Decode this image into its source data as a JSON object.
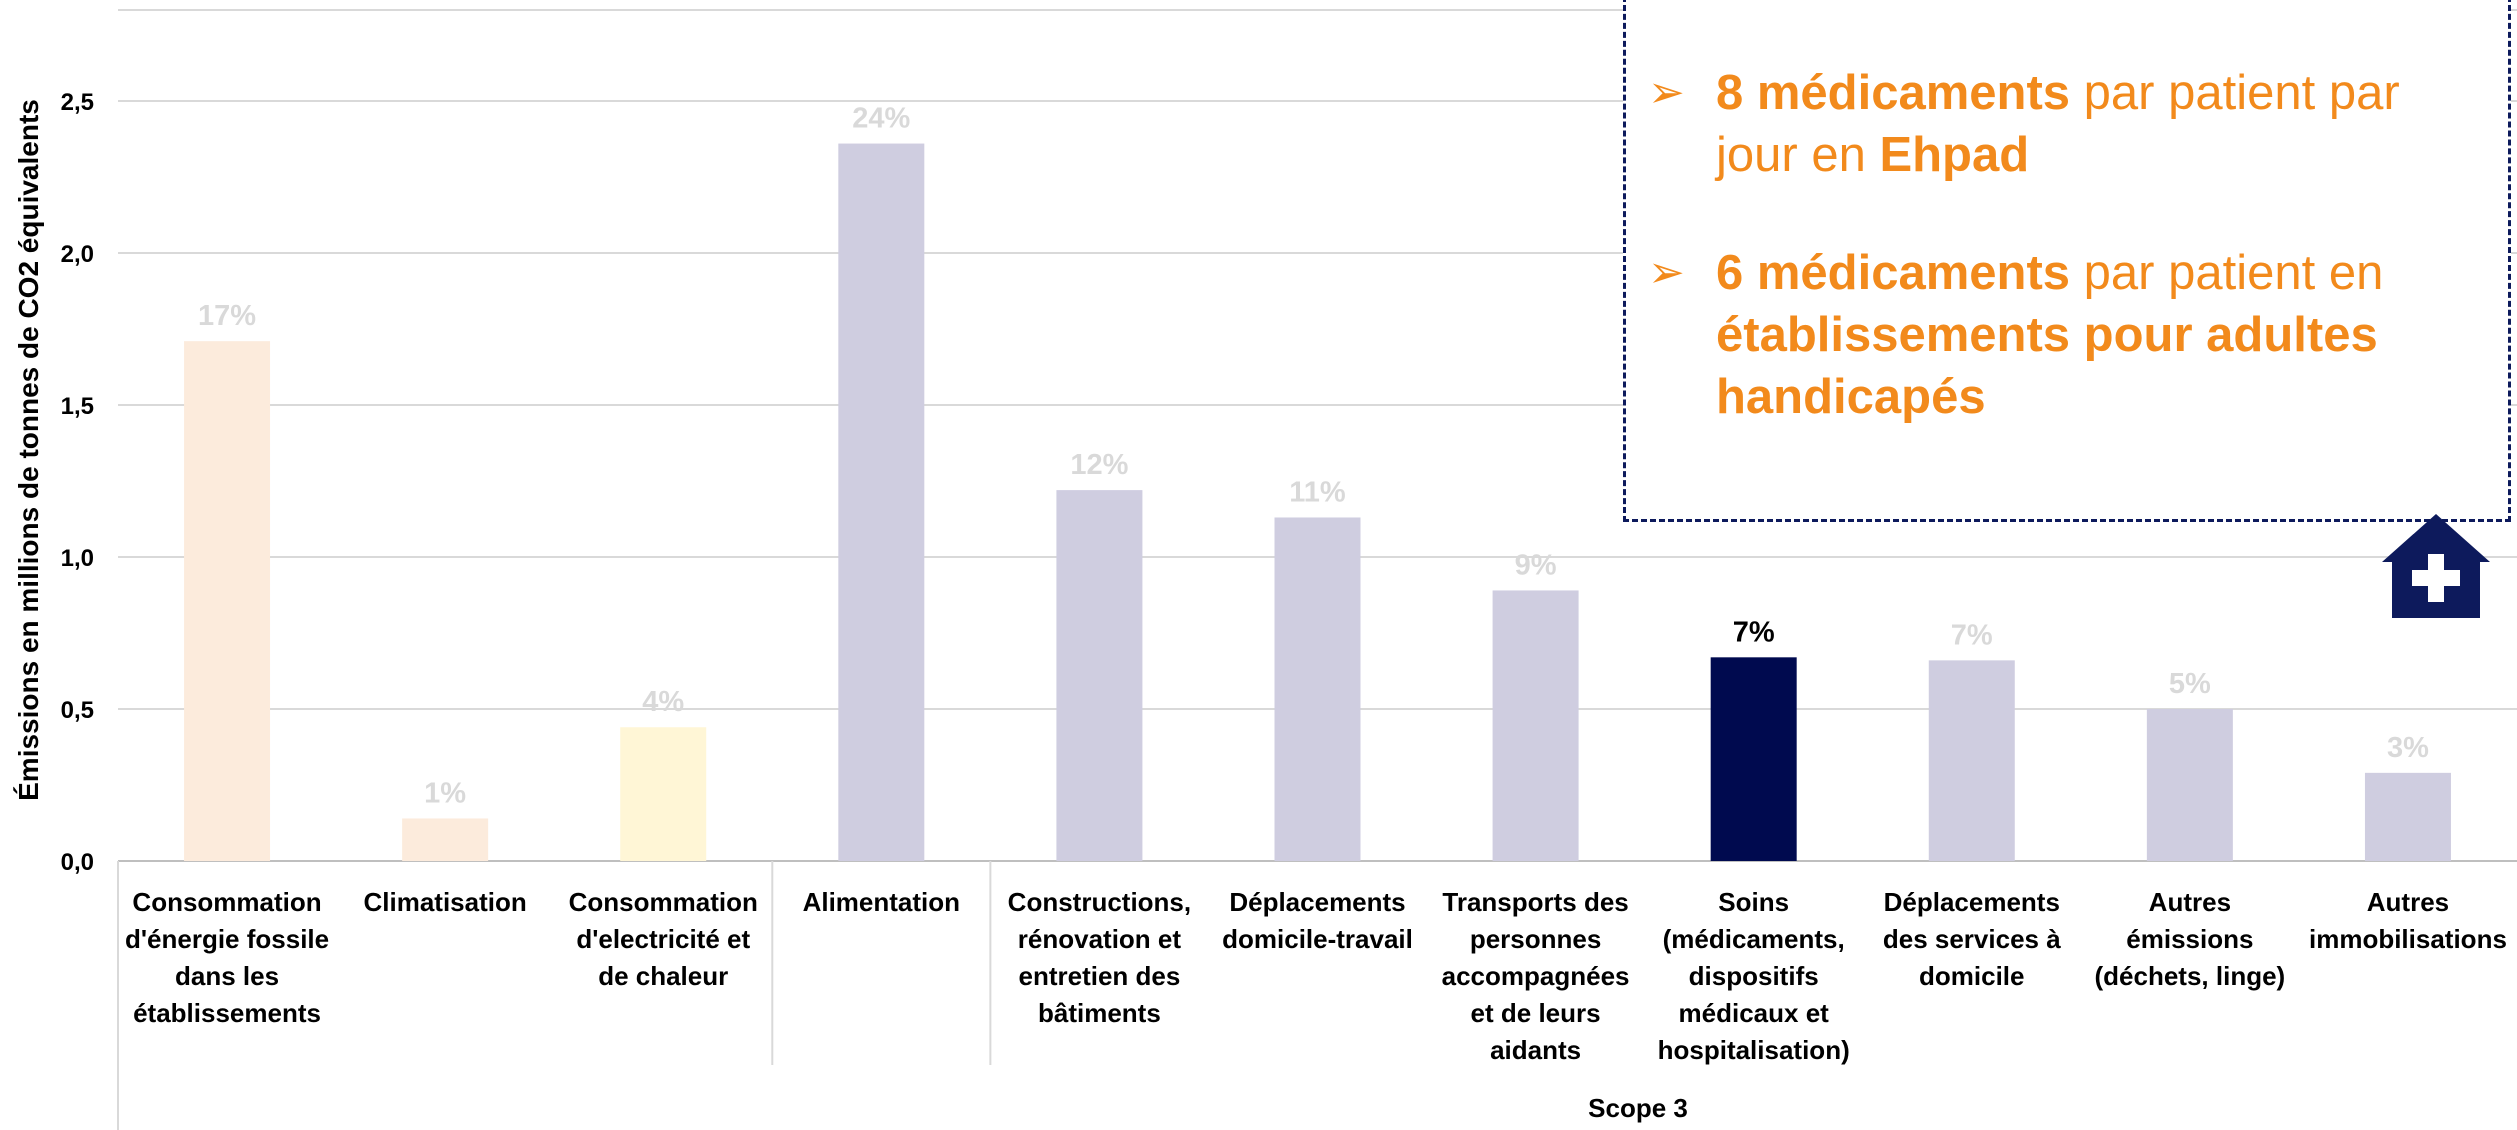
{
  "chart_data": {
    "type": "bar",
    "ylabel": "Émissions en millions de tonnes de CO2 équivalents",
    "ylim": [
      0,
      2.8
    ],
    "yticks": [
      "0,0",
      "0,5",
      "1,0",
      "1,5",
      "2,0",
      "2,5"
    ],
    "grid": true,
    "categories": [
      "Consommation d'énergie fossile dans les établissements",
      "Climatisation",
      "Consommation d'electricité et de chaleur",
      "Alimentation",
      "Constructions, rénovation et entretien des bâtiments",
      "Déplacements domicile-travail",
      "Transports des personnes accompagnées et de leurs aidants",
      "Soins (médicaments, dispositifs médicaux et hospitalisation)",
      "Déplacements des services à domicile",
      "Autres émissions (déchets, linge)",
      "Autres immobilisations"
    ],
    "category_lines": [
      [
        "Consommation",
        "d'énergie fossile",
        "dans les",
        "établissements"
      ],
      [
        "Climatisation"
      ],
      [
        "Consommation",
        "d'electricité et",
        "de chaleur"
      ],
      [
        "Alimentation"
      ],
      [
        "Constructions,",
        "rénovation et",
        "entretien des",
        "bâtiments"
      ],
      [
        "Déplacements",
        "domicile-travail"
      ],
      [
        "Transports des",
        "personnes",
        "accompagnées",
        "et de leurs",
        "aidants"
      ],
      [
        "Soins",
        "(médicaments,",
        "dispositifs",
        "médicaux et",
        "hospitalisation)"
      ],
      [
        "Déplacements",
        "des services à",
        "domicile"
      ],
      [
        "Autres",
        "émissions",
        "(déchets, linge)"
      ],
      [
        "Autres",
        "immobilisations"
      ]
    ],
    "values": [
      1.71,
      0.14,
      0.44,
      2.36,
      1.22,
      1.13,
      0.89,
      0.67,
      0.66,
      0.5,
      0.29
    ],
    "data_labels": [
      "17%",
      "1%",
      "4%",
      "24%",
      "12%",
      "11%",
      "9%",
      "7%",
      "7%",
      "5%",
      "3%"
    ],
    "bar_colors": [
      "#fcebdc",
      "#fcebdc",
      "#fff6d6",
      "#cfcde0",
      "#cfcde0",
      "#cfcde0",
      "#cfcde0",
      "#000a4f",
      "#cfcde0",
      "#cfcde0",
      "#cfcde0"
    ],
    "label_colors": [
      "#d9d9d9",
      "#d9d9d9",
      "#d9d9d9",
      "#d9d9d9",
      "#d9d9d9",
      "#d9d9d9",
      "#d9d9d9",
      "#000000",
      "#d9d9d9",
      "#d9d9d9",
      "#d9d9d9"
    ],
    "group_label": "Scope 3"
  },
  "callout": {
    "item1_bold": "8 médicaments",
    "item1_text": " par patient par jour en ",
    "item1_bold2": "Ehpad",
    "item2_bold": "6 médicaments",
    "item2_text": " par patient en ",
    "item2_bold2": "établissements pour adultes handicapés",
    "arrow_glyph": "➢",
    "color": "#f28a1c"
  },
  "icon": {
    "name": "hospital-house-icon",
    "color": "#0d1a5c"
  }
}
